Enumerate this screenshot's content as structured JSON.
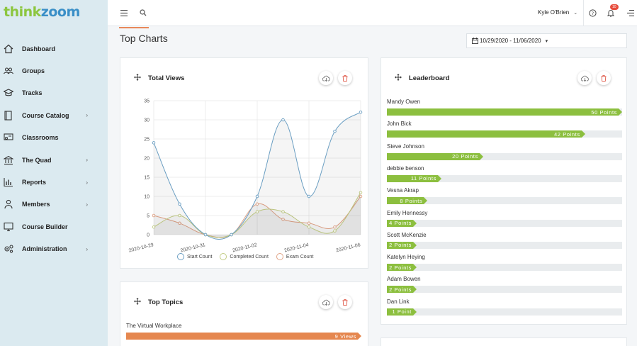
{
  "brand": {
    "think": "think",
    "zoom": "zoom"
  },
  "sidebar": {
    "items": [
      {
        "label": "Dashboard",
        "icon": "home-icon",
        "chevron": false
      },
      {
        "label": "Groups",
        "icon": "users-icon",
        "chevron": false
      },
      {
        "label": "Tracks",
        "icon": "graduation-cap-icon",
        "chevron": false
      },
      {
        "label": "Course Catalog",
        "icon": "book-icon",
        "chevron": true
      },
      {
        "label": "Classrooms",
        "icon": "classroom-icon",
        "chevron": false
      },
      {
        "label": "The Quad",
        "icon": "building-icon",
        "chevron": true
      },
      {
        "label": "Reports",
        "icon": "bar-chart-icon",
        "chevron": true
      },
      {
        "label": "Members",
        "icon": "person-icon",
        "chevron": true
      },
      {
        "label": "Course Builder",
        "icon": "monitor-icon",
        "chevron": false
      },
      {
        "label": "Administration",
        "icon": "gears-icon",
        "chevron": true
      }
    ]
  },
  "topbar": {
    "user_name": "Kyle O'Brien",
    "notification_count": "10"
  },
  "page": {
    "title": "Top Charts",
    "date_range": "10/29/2020 - 11/06/2020"
  },
  "cards": {
    "total_views": {
      "title": "Total Views"
    },
    "leaderboard": {
      "title": "Leaderboard"
    },
    "top_topics": {
      "title": "Top Topics"
    }
  },
  "chart_data": {
    "type": "line",
    "title": "Total Views",
    "x": [
      "2020-10-29",
      "2020-10-30",
      "2020-10-31",
      "2020-11-01",
      "2020-11-02",
      "2020-11-03",
      "2020-11-04",
      "2020-11-05",
      "2020-11-06"
    ],
    "x_tick_labels": [
      "2020-10-29",
      "2020-10-31",
      "2020-11-02",
      "2020-11-04",
      "2020-11-06"
    ],
    "y_ticks": [
      0,
      5,
      10,
      15,
      20,
      25,
      30,
      35
    ],
    "ylim": [
      0,
      35
    ],
    "grid": true,
    "legend_placement": "bottom",
    "series": [
      {
        "name": "Start Count",
        "color": "#6a9ec2",
        "values": [
          24,
          8,
          0,
          0,
          10,
          30,
          10,
          27,
          32
        ]
      },
      {
        "name": "Completed Count",
        "color": "#c2cc84",
        "values": [
          2,
          5,
          0,
          0,
          6,
          6,
          2,
          1,
          11
        ]
      },
      {
        "name": "Exam Count",
        "color": "#e2a487",
        "values": [
          5,
          3,
          0,
          0,
          8,
          4,
          3,
          2,
          10
        ]
      }
    ]
  },
  "leaderboard": [
    {
      "name": "Mandy Owen",
      "points": "50 Points",
      "value": 50
    },
    {
      "name": "John Bick",
      "points": "42 Points",
      "value": 42
    },
    {
      "name": "Steve Johnson",
      "points": "20 Points",
      "value": 20
    },
    {
      "name": "debbie benson",
      "points": "11 Points",
      "value": 11
    },
    {
      "name": "Vesna Akrap",
      "points": "8 Points",
      "value": 8
    },
    {
      "name": "Emily Hennessy",
      "points": "4 Points",
      "value": 4
    },
    {
      "name": "Scott McKenzie",
      "points": "2 Points",
      "value": 2
    },
    {
      "name": "Katelyn Heying",
      "points": "2 Points",
      "value": 2
    },
    {
      "name": "Adam Bowen",
      "points": "2 Points",
      "value": 2
    },
    {
      "name": "Dan Link",
      "points": "1 Point",
      "value": 1
    }
  ],
  "top_topics": [
    {
      "name": "The Virtual Workplace",
      "views": "9 Views"
    }
  ],
  "colors": {
    "accent": "#e5874f",
    "leader_bar": "#8cbf3f",
    "brand_green": "#8cc63f",
    "brand_blue": "#3a8fc7"
  }
}
